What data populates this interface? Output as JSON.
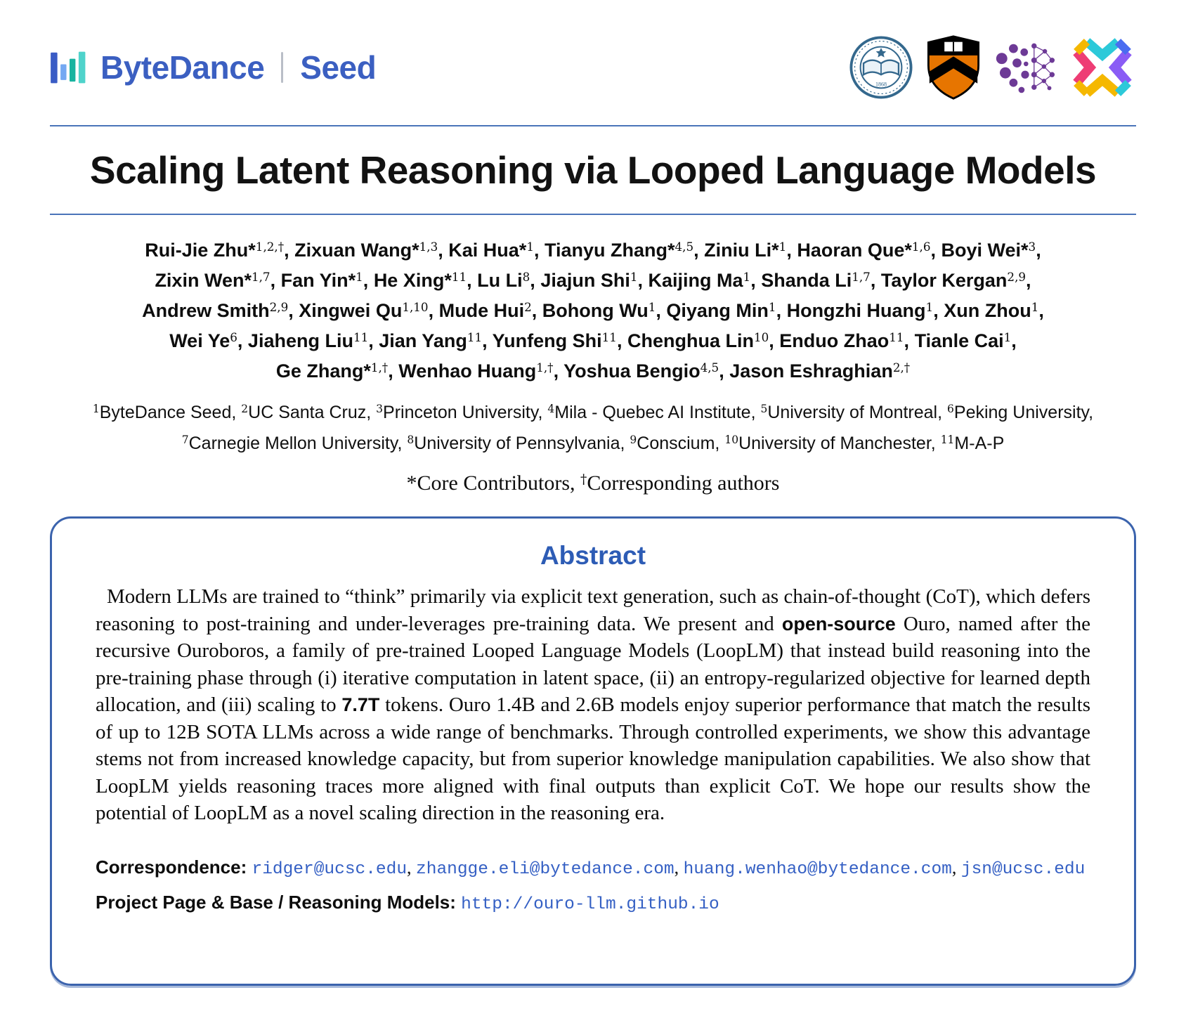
{
  "header": {
    "brand": {
      "bytedance": "ByteDance",
      "divider": "|",
      "seed": "Seed"
    },
    "partner_logos": [
      {
        "icon": "uc-seal-logo"
      },
      {
        "icon": "princeton-shield-logo"
      },
      {
        "icon": "mila-logo"
      },
      {
        "icon": "map-logo"
      }
    ]
  },
  "title": "Scaling Latent Reasoning via Looped Language Models",
  "authors": {
    "lines": [
      [
        {
          "name": "Rui-Jie Zhu*",
          "sup": "1,2,†"
        },
        {
          "name": "Zixuan Wang*",
          "sup": "1,3"
        },
        {
          "name": "Kai Hua*",
          "sup": "1"
        },
        {
          "name": "Tianyu Zhang*",
          "sup": "4,5"
        },
        {
          "name": "Ziniu Li*",
          "sup": "1"
        },
        {
          "name": "Haoran Que*",
          "sup": "1,6"
        },
        {
          "name": "Boyi Wei*",
          "sup": "3"
        }
      ],
      [
        {
          "name": "Zixin Wen*",
          "sup": "1,7"
        },
        {
          "name": "Fan Yin*",
          "sup": "1"
        },
        {
          "name": "He Xing*",
          "sup": "11"
        },
        {
          "name": "Lu Li",
          "sup": "8"
        },
        {
          "name": "Jiajun Shi",
          "sup": "1"
        },
        {
          "name": "Kaijing Ma",
          "sup": "1"
        },
        {
          "name": "Shanda Li",
          "sup": "1,7"
        },
        {
          "name": "Taylor Kergan",
          "sup": "2,9"
        }
      ],
      [
        {
          "name": "Andrew Smith",
          "sup": "2,9"
        },
        {
          "name": "Xingwei Qu",
          "sup": "1,10"
        },
        {
          "name": "Mude Hui",
          "sup": "2"
        },
        {
          "name": "Bohong Wu",
          "sup": "1"
        },
        {
          "name": "Qiyang Min",
          "sup": "1"
        },
        {
          "name": "Hongzhi Huang",
          "sup": "1"
        },
        {
          "name": "Xun Zhou",
          "sup": "1"
        }
      ],
      [
        {
          "name": "Wei Ye",
          "sup": "6"
        },
        {
          "name": "Jiaheng Liu",
          "sup": "11"
        },
        {
          "name": "Jian Yang",
          "sup": "11"
        },
        {
          "name": "Yunfeng Shi",
          "sup": "11"
        },
        {
          "name": "Chenghua Lin",
          "sup": "10"
        },
        {
          "name": "Enduo Zhao",
          "sup": "11"
        },
        {
          "name": "Tianle Cai",
          "sup": "1"
        }
      ],
      [
        {
          "name": "Ge Zhang*",
          "sup": "1,†"
        },
        {
          "name": "Wenhao Huang",
          "sup": "1,†"
        },
        {
          "name": "Yoshua Bengio",
          "sup": "4,5"
        },
        {
          "name": "Jason Eshraghian",
          "sup": "2,†"
        }
      ]
    ]
  },
  "affiliations": [
    {
      "sup": "1",
      "name": "ByteDance Seed"
    },
    {
      "sup": "2",
      "name": "UC Santa Cruz"
    },
    {
      "sup": "3",
      "name": "Princeton University"
    },
    {
      "sup": "4",
      "name": "Mila - Quebec AI Institute"
    },
    {
      "sup": "5",
      "name": "University of Montreal"
    },
    {
      "sup": "6",
      "name": "Peking University"
    },
    {
      "sup": "7",
      "name": "Carnegie Mellon University"
    },
    {
      "sup": "8",
      "name": "University of Pennsylvania"
    },
    {
      "sup": "9",
      "name": "Conscium"
    },
    {
      "sup": "10",
      "name": "University of Manchester"
    },
    {
      "sup": "11",
      "name": "M-A-P"
    }
  ],
  "core_note": {
    "segments": [
      {
        "t": "*Core Contributors, "
      },
      {
        "sup": "†"
      },
      {
        "t": "Corresponding authors"
      }
    ]
  },
  "abstract": {
    "heading": "Abstract",
    "segments": [
      {
        "t": "Modern LLMs are trained to “think” primarily via explicit text generation, such as chain-of-thought (CoT), which defers reasoning to post-training and under-leverages pre-training data. We present and "
      },
      {
        "t": "open-source",
        "bold": true
      },
      {
        "t": " Ouro, named after the recursive Ouroboros, a family of pre-trained Looped Language Models (LoopLM) that instead build reasoning into the pre-training phase through (i) iterative computation in latent space, (ii) an entropy-regularized objective for learned depth allocation, and (iii) scaling to "
      },
      {
        "t": "7.7T",
        "bold": true
      },
      {
        "t": " tokens. Ouro 1.4B and 2.6B models enjoy superior performance that match the results of up to 12B SOTA LLMs across a wide range of benchmarks. Through controlled experiments, we show this advantage stems not from increased knowledge capacity, but from superior knowledge manipulation capabilities. We also show that LoopLM yields reasoning traces more aligned with final outputs than explicit CoT. We hope our results show the potential of LoopLM as a novel scaling direction in the reasoning era."
      }
    ]
  },
  "contact": {
    "correspondence_label": "Correspondence:",
    "emails": [
      "ridger@ucsc.edu",
      "zhangge.eli@bytedance.com",
      "huang.wenhao@bytedance.com",
      "jsn@ucsc.edu"
    ],
    "project_label": "Project Page & Base / Reasoning Models:",
    "project_url": "http://ouro-llm.github.io"
  },
  "colors": {
    "accent_blue": "#2d5cb5",
    "rule_blue": "#4a74b9",
    "box_border": "#3b63ad",
    "link_blue": "#3560c4",
    "brand_blue": "#3b5fc1"
  }
}
